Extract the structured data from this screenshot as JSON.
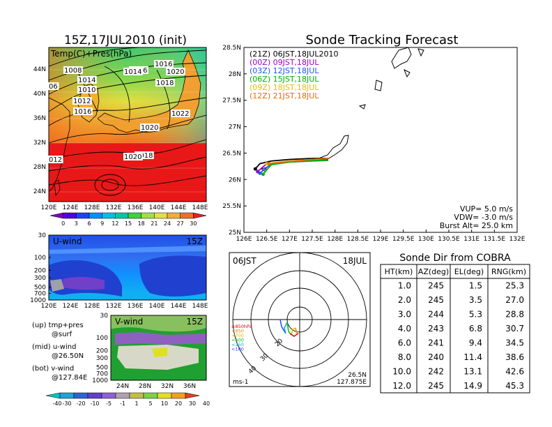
{
  "titles": {
    "init": "15Z,17JUL2010 (init)",
    "main": "Sonde Tracking Forecast"
  },
  "map_panel": {
    "label": "Temp(C)+Pres(hPa)",
    "lat_labels": [
      "44N",
      "40N",
      "36N",
      "32N",
      "28N",
      "24N"
    ],
    "lon_labels": [
      "120E",
      "124E",
      "128E",
      "132E",
      "136E",
      "140E",
      "144E",
      "148E"
    ],
    "pressure_labels": [
      "1008",
      "1014",
      "1016",
      "1010",
      "1012",
      "1018",
      "1020",
      "1022",
      "1016",
      "1020",
      "1018",
      "1014",
      "1016",
      "1020",
      "012",
      "06"
    ],
    "colorbar_ticks": [
      "0",
      "3",
      "6",
      "9",
      "12",
      "15",
      "18",
      "21",
      "24",
      "27",
      "30"
    ]
  },
  "uwind_panel": {
    "label": "U-wind",
    "time": "15Z",
    "y_ticks": [
      "30",
      "100",
      "200",
      "300",
      "500",
      "700",
      "1000"
    ],
    "x_ticks": [
      "120E",
      "124E",
      "128E",
      "132E",
      "136E",
      "140E",
      "144E",
      "148E"
    ]
  },
  "vwind_panel": {
    "label": "V-wind",
    "time": "15Z",
    "y_ticks": [
      "30",
      "100",
      "200",
      "300",
      "500",
      "700",
      "1000"
    ],
    "x_ticks": [
      "24N",
      "28N",
      "32N",
      "36N"
    ]
  },
  "legend_notes": {
    "up": "(up)  tmp+pres",
    "up2": "@surf",
    "mid": "(mid)  u-wind",
    "mid2": "@26.50N",
    "bot": "(bot)  v-wind",
    "bot2": "@127.84E"
  },
  "wind_colorbar_ticks": [
    "-40",
    "-30",
    "-20",
    "-10",
    "-5",
    "-1",
    "1",
    "5",
    "10",
    "20",
    "30",
    "40"
  ],
  "track_panel": {
    "lat_ticks": [
      "28.5N",
      "28N",
      "27.5N",
      "27N",
      "26.5N",
      "26N",
      "25.5N",
      "25N"
    ],
    "lon_ticks": [
      "126E",
      "126.5E",
      "127E",
      "127.5E",
      "128E",
      "128.5E",
      "129E",
      "129.5E",
      "130E",
      "130.5E",
      "131E",
      "131.5E",
      "132E"
    ],
    "legend": [
      {
        "text": "(21Z)  06JST,18JUL2010",
        "color": "#000000"
      },
      {
        "text": "(00Z)  09JST,18JUL",
        "color": "#a000c8"
      },
      {
        "text": "(03Z)  12JST,18JUL",
        "color": "#2050ff"
      },
      {
        "text": "(06Z)  15JST,18JUL",
        "color": "#00b000"
      },
      {
        "text": "(09Z)  18JST,18JUL",
        "color": "#e8c000"
      },
      {
        "text": "(12Z)  21JST,18JUL",
        "color": "#e07000"
      }
    ],
    "vup": "VUP=  5.0  m/s",
    "vdw": "VDW= -3.0  m/s",
    "burst": "Burst Alt=  25.0  km"
  },
  "polar_panel": {
    "left_label": "06JST",
    "right_label": "18JUL",
    "loc1": "26.5N",
    "loc2": "127.875E",
    "unit": "ms-1",
    "ring_labels": [
      "20",
      "30",
      "40"
    ],
    "pressure_legend": [
      "≥850hPa",
      "<850",
      "<700",
      "<500",
      "<250",
      "<100"
    ],
    "pressure_colors": [
      "#e00000",
      "#ff8000",
      "#d8c000",
      "#00c000",
      "#00b0e0",
      "#2040ff"
    ]
  },
  "table": {
    "title": "Sonde  Dir  from  COBRA",
    "headers": [
      "HT(km)",
      "AZ(deg)",
      "EL(deg)",
      "RNG(km)"
    ],
    "rows": [
      [
        "1.0",
        "245",
        "1.5",
        "25.3"
      ],
      [
        "2.0",
        "245",
        "3.5",
        "27.0"
      ],
      [
        "3.0",
        "244",
        "5.3",
        "28.8"
      ],
      [
        "4.0",
        "243",
        "6.8",
        "30.7"
      ],
      [
        "6.0",
        "241",
        "9.4",
        "34.5"
      ],
      [
        "8.0",
        "240",
        "11.4",
        "38.6"
      ],
      [
        "10.0",
        "242",
        "13.1",
        "42.6"
      ],
      [
        "12.0",
        "245",
        "14.9",
        "45.3"
      ]
    ]
  },
  "chart_data": [
    {
      "type": "line",
      "title": "Sonde Tracking Forecast",
      "xlabel": "",
      "ylabel": "",
      "xlim": [
        126,
        132
      ],
      "ylim": [
        25,
        28.5
      ],
      "series": [
        {
          "name": "(21Z)  06JST,18JUL2010",
          "x": [
            126.25,
            126.35,
            126.6,
            127.0,
            127.5,
            127.85
          ],
          "y": [
            26.2,
            26.3,
            26.35,
            26.38,
            26.4,
            26.4
          ]
        },
        {
          "name": "(00Z)  09JST,18JUL",
          "x": [
            126.3,
            126.5,
            127.0,
            127.5,
            127.85
          ],
          "y": [
            26.15,
            26.3,
            26.35,
            26.38,
            26.38
          ]
        },
        {
          "name": "(03Z)  12JST,18JUL",
          "x": [
            126.35,
            126.6,
            127.0,
            127.5,
            127.85
          ],
          "y": [
            26.12,
            26.3,
            26.33,
            26.35,
            26.36
          ]
        },
        {
          "name": "(06Z)  15JST,18JUL",
          "x": [
            126.42,
            126.6,
            127.0,
            127.5,
            127.85
          ],
          "y": [
            26.1,
            26.28,
            26.33,
            26.36,
            26.36
          ]
        },
        {
          "name": "(09Z)  18JST,18JUL",
          "x": [
            126.5,
            127.0,
            127.5,
            127.85
          ],
          "y": [
            26.3,
            26.35,
            26.38,
            26.4
          ]
        },
        {
          "name": "(12Z)  21JST,18JUL",
          "x": [
            126.55,
            127.0,
            127.5,
            127.85
          ],
          "y": [
            26.3,
            26.34,
            26.38,
            26.4
          ]
        }
      ]
    },
    {
      "type": "table",
      "title": "Sonde  Dir  from  COBRA",
      "columns": [
        "HT(km)",
        "AZ(deg)",
        "EL(deg)",
        "RNG(km)"
      ],
      "rows": [
        [
          1.0,
          245,
          1.5,
          25.3
        ],
        [
          2.0,
          245,
          3.5,
          27.0
        ],
        [
          3.0,
          244,
          5.3,
          28.8
        ],
        [
          4.0,
          243,
          6.8,
          30.7
        ],
        [
          6.0,
          241,
          9.4,
          34.5
        ],
        [
          8.0,
          240,
          11.4,
          38.6
        ],
        [
          10.0,
          242,
          13.1,
          42.6
        ],
        [
          12.0,
          245,
          14.9,
          45.3
        ]
      ]
    }
  ],
  "colors": {
    "temp_scale": [
      "#8000c0",
      "#5000e0",
      "#2040ff",
      "#0090ff",
      "#00c0e0",
      "#00c8a0",
      "#40d040",
      "#a0e040",
      "#e0e040",
      "#f0b030",
      "#f07020",
      "#e82020"
    ],
    "wind_scale": [
      "#10c0c0",
      "#20a0e0",
      "#3060e0",
      "#6040d0",
      "#9060d0",
      "#b0a0b0",
      "#c0c040",
      "#80d040",
      "#e0e020",
      "#f0a020",
      "#e04020"
    ]
  }
}
